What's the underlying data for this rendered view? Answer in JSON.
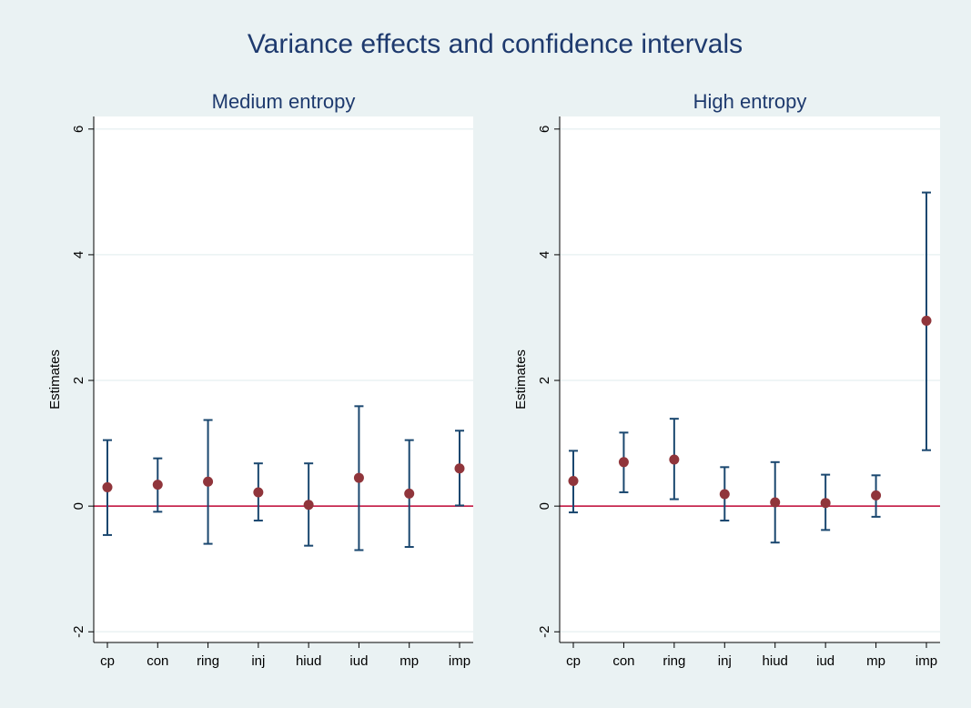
{
  "title": "Variance effects and confidence intervals",
  "chart_data": [
    {
      "type": "scatter",
      "title": "Medium entropy",
      "ylabel": "Estimates",
      "categories": [
        "cp",
        "con",
        "ring",
        "inj",
        "hiud",
        "iud",
        "mp",
        "imp"
      ],
      "values": [
        0.3,
        0.34,
        0.39,
        0.22,
        0.02,
        0.45,
        0.2,
        0.6
      ],
      "lower": [
        -0.46,
        -0.09,
        -0.6,
        -0.23,
        -0.63,
        -0.7,
        -0.65,
        0.01
      ],
      "upper": [
        1.05,
        0.76,
        1.37,
        0.68,
        0.68,
        1.59,
        1.05,
        1.2
      ],
      "color": "#90353b",
      "bar_color": "#1a476f",
      "ylim": [
        -2.17,
        6.2
      ],
      "yticks": [
        -2,
        0,
        2,
        4,
        6
      ],
      "grid": true,
      "refline": 0,
      "refline_color": "#c10534"
    },
    {
      "type": "scatter",
      "title": "High entropy",
      "ylabel": "Estimates",
      "categories": [
        "cp",
        "con",
        "ring",
        "inj",
        "hiud",
        "iud",
        "mp",
        "imp"
      ],
      "values": [
        0.4,
        0.7,
        0.74,
        0.19,
        0.06,
        0.05,
        0.17,
        2.95
      ],
      "lower": [
        -0.1,
        0.22,
        0.11,
        -0.23,
        -0.58,
        -0.38,
        -0.17,
        0.89
      ],
      "upper": [
        0.88,
        1.17,
        1.39,
        0.62,
        0.7,
        0.5,
        0.49,
        4.99
      ],
      "color": "#90353b",
      "bar_color": "#1a476f",
      "ylim": [
        -2.17,
        6.2
      ],
      "yticks": [
        -2,
        0,
        2,
        4,
        6
      ],
      "grid": true,
      "refline": 0,
      "refline_color": "#c10534"
    }
  ]
}
